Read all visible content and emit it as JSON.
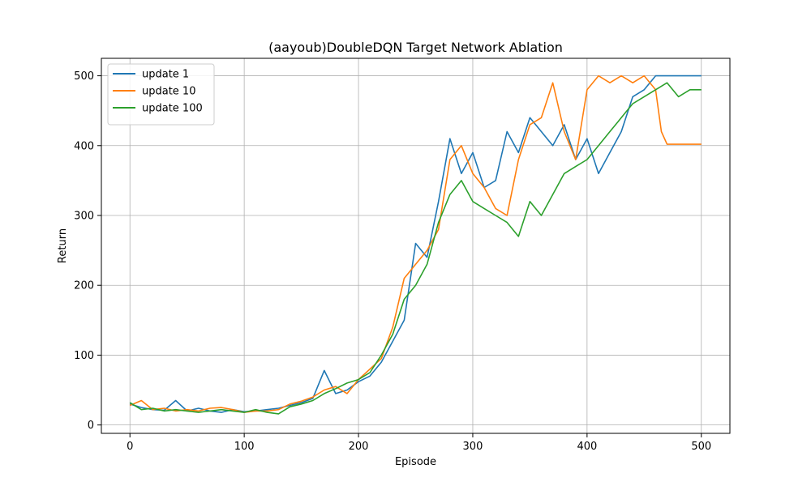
{
  "chart_data": {
    "type": "line",
    "title": "(aayoub)DoubleDQN Target Network Ablation",
    "xlabel": "Episode",
    "ylabel": "Return",
    "xlim": [
      -25,
      525
    ],
    "ylim": [
      -12,
      525
    ],
    "xticks": [
      0,
      100,
      200,
      300,
      400,
      500
    ],
    "yticks": [
      0,
      100,
      200,
      300,
      400,
      500
    ],
    "grid": true,
    "legend_position": "top-left",
    "series": [
      {
        "name": "update 1",
        "color": "#1f77b4",
        "x": [
          0,
          10,
          20,
          30,
          40,
          50,
          60,
          70,
          80,
          90,
          100,
          110,
          120,
          130,
          140,
          150,
          160,
          170,
          180,
          190,
          200,
          210,
          220,
          230,
          240,
          250,
          260,
          270,
          280,
          290,
          300,
          310,
          320,
          330,
          340,
          350,
          360,
          370,
          380,
          390,
          400,
          410,
          420,
          430,
          440,
          450,
          460,
          470,
          480,
          490,
          500
        ],
        "y": [
          30,
          25,
          22,
          21,
          35,
          20,
          24,
          20,
          18,
          22,
          19,
          20,
          22,
          24,
          28,
          32,
          38,
          78,
          45,
          50,
          62,
          70,
          90,
          120,
          150,
          260,
          240,
          320,
          410,
          360,
          390,
          340,
          350,
          420,
          390,
          440,
          420,
          400,
          430,
          380,
          410,
          360,
          390,
          420,
          470,
          480,
          500,
          500,
          500,
          500,
          500
        ]
      },
      {
        "name": "update 10",
        "color": "#ff7f0e",
        "x": [
          0,
          10,
          20,
          30,
          40,
          50,
          60,
          70,
          80,
          90,
          100,
          110,
          120,
          130,
          140,
          150,
          160,
          170,
          180,
          190,
          200,
          210,
          220,
          230,
          240,
          250,
          260,
          270,
          280,
          290,
          300,
          310,
          320,
          330,
          340,
          350,
          360,
          370,
          380,
          390,
          400,
          410,
          420,
          430,
          440,
          450,
          460,
          465,
          470,
          480,
          490,
          500
        ],
        "y": [
          28,
          35,
          22,
          24,
          20,
          22,
          20,
          24,
          25,
          22,
          18,
          20,
          20,
          22,
          30,
          34,
          40,
          50,
          55,
          45,
          65,
          80,
          95,
          140,
          210,
          230,
          250,
          280,
          380,
          400,
          360,
          340,
          310,
          300,
          380,
          430,
          440,
          490,
          420,
          380,
          480,
          500,
          490,
          500,
          490,
          500,
          480,
          420,
          402,
          402,
          402,
          402
        ]
      },
      {
        "name": "update 100",
        "color": "#2ca02c",
        "x": [
          0,
          10,
          20,
          30,
          40,
          50,
          60,
          70,
          80,
          90,
          100,
          110,
          120,
          130,
          140,
          150,
          160,
          170,
          180,
          190,
          200,
          210,
          220,
          230,
          240,
          250,
          260,
          270,
          280,
          290,
          300,
          310,
          320,
          330,
          340,
          350,
          360,
          370,
          380,
          390,
          400,
          410,
          420,
          430,
          440,
          450,
          460,
          470,
          480,
          490,
          500
        ],
        "y": [
          32,
          22,
          24,
          20,
          22,
          20,
          18,
          20,
          22,
          20,
          18,
          22,
          18,
          16,
          26,
          30,
          35,
          45,
          52,
          60,
          65,
          75,
          100,
          130,
          180,
          200,
          230,
          290,
          330,
          350,
          320,
          310,
          300,
          290,
          270,
          320,
          300,
          330,
          360,
          370,
          380,
          400,
          420,
          440,
          460,
          470,
          480,
          490,
          470,
          480,
          480
        ]
      }
    ]
  }
}
